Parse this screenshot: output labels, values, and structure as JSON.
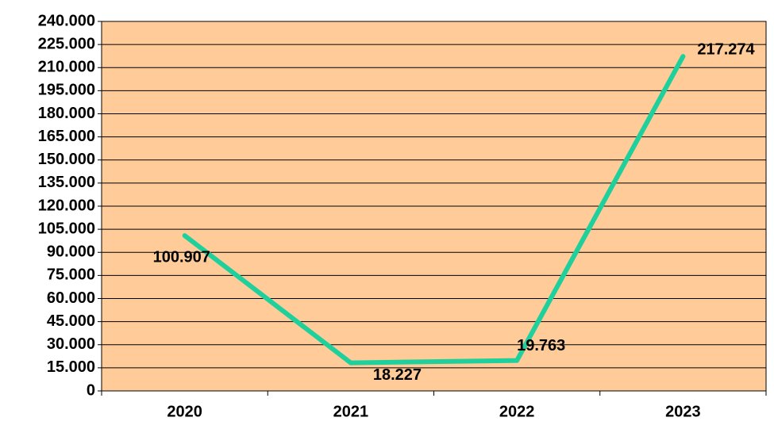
{
  "chart_data": {
    "type": "line",
    "categories": [
      "2020",
      "2021",
      "2022",
      "2023"
    ],
    "values": [
      100907,
      18227,
      19763,
      217274
    ],
    "value_labels": [
      "100.907",
      "18.227",
      "19.763",
      "217.274"
    ],
    "color": "#20d09c",
    "background": "#ffcc99",
    "ylim": [
      0,
      240000
    ],
    "yticks": [
      0,
      {
        "value": 15000,
        "label": "15.000"
      },
      {
        "value": 30000,
        "label": "30.000"
      },
      {
        "value": 45000,
        "label": "45.000"
      },
      {
        "value": 60000,
        "label": "60.000"
      },
      {
        "value": 75000,
        "label": "75.000"
      },
      {
        "value": 90000,
        "label": "90.000"
      },
      {
        "value": 105000,
        "label": "105.000"
      },
      {
        "value": 120000,
        "label": "120.000"
      },
      {
        "value": 135000,
        "label": "135.000"
      },
      {
        "value": 150000,
        "label": "150.000"
      },
      {
        "value": 165000,
        "label": "165.000"
      },
      {
        "value": 180000,
        "label": "180.000"
      },
      {
        "value": 195000,
        "label": "195.000"
      },
      {
        "value": 210000,
        "label": "210.000"
      },
      {
        "value": 225000,
        "label": "225.000"
      },
      {
        "value": 240000,
        "label": "240.000"
      }
    ],
    "grid": true
  }
}
